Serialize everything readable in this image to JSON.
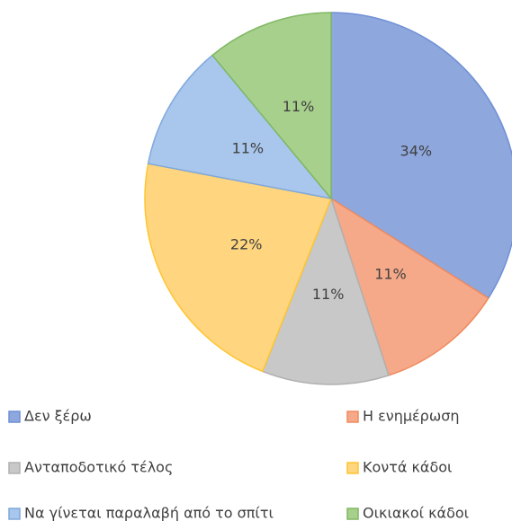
{
  "chart_data": {
    "type": "pie",
    "categories": [
      "Δεν ξέρω",
      "Η ενημέρωση",
      "Ανταποδοτικό τέλος",
      "Κοντά κάδοι",
      "Να γίνεται παραλαβή από το σπίτι",
      "Οικιακοί κάδοι"
    ],
    "values": [
      34,
      11,
      11,
      22,
      11,
      11
    ],
    "value_labels": [
      "34%",
      "11%",
      "11%",
      "22%",
      "11%",
      "11%"
    ],
    "colors": [
      "#8ea7dd",
      "#f5a989",
      "#c8c8c8",
      "#ffd67f",
      "#a9c6ec",
      "#a8d08d"
    ],
    "edge_colors": [
      "#6f8fd6",
      "#f08a5d",
      "#b0b0b0",
      "#ffc430",
      "#7fa9dc",
      "#7fb862"
    ],
    "legend": "bottom"
  }
}
